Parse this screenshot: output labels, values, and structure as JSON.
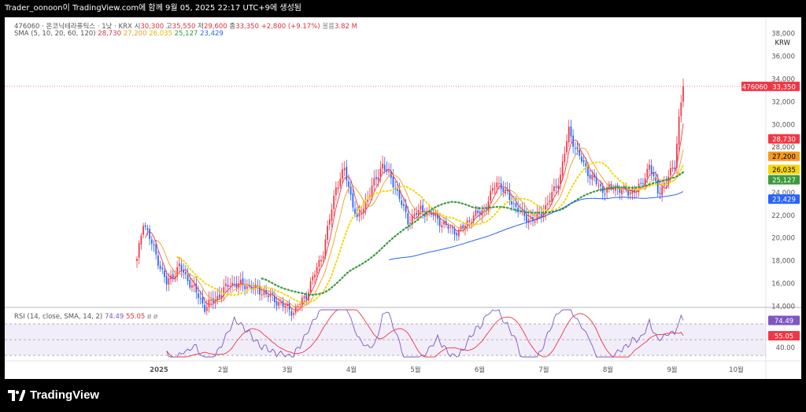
{
  "header": {
    "text": "Trader_oonoon이 TradingView.com에 함께 9월 05, 2025 22:17 UTC+9에 생성됨"
  },
  "legend_main": {
    "symbol": "476060 · 온코닉테라퓨틱스 · 1낮 · KRX",
    "open_label": "시",
    "open": "30,300",
    "high_label": "고",
    "high": "35,550",
    "low_label": "저",
    "low": "29,600",
    "close_label": "종",
    "close": "33,350",
    "change": "+2,800 (+9.17%)",
    "volume_label": "볼륨",
    "volume": "3.82 M"
  },
  "legend_sma": {
    "label": "SMA (5, 10, 20, 60, 120)",
    "v1": "28,730",
    "v2": "27,200",
    "v3": "26,035",
    "v4": "25,127",
    "v5": "23,429"
  },
  "legend_rsi": {
    "label": "RSI (14, close, SMA, 14, 2)",
    "v1": "74.49",
    "v2": "55.05",
    "v3": "ø ø"
  },
  "currency": "KRW",
  "brand": "TradingView",
  "colors": {
    "up": "#f23645",
    "down": "#2962ff",
    "sma5": "#f23645",
    "sma10": "#f59b1e",
    "sma20": "#f5d60a",
    "sma60": "#3b9a3c",
    "sma120": "#2962ff",
    "rsi": "#7e57c2",
    "rsi_ma": "#f23645"
  },
  "chart_data": {
    "type": "candlestick",
    "currency": "KRW",
    "price_ticks": [
      "38,000",
      "36,000",
      "34,000",
      "32,000",
      "30,000",
      "28,000",
      "26,000",
      "24,000",
      "22,000",
      "20,000",
      "18,000",
      "16,000",
      "14,000"
    ],
    "rsi_ticks": [
      "40.00"
    ],
    "x_ticks": [
      "2025",
      "2월",
      "3월",
      "4월",
      "5월",
      "6월",
      "7월",
      "8월",
      "9월",
      "10월"
    ],
    "last_price": {
      "symbol": "476060",
      "value": "33,350"
    },
    "sma_last": [
      "28,730",
      "27,200",
      "26,035",
      "25,127",
      "23,429"
    ],
    "rsi_last": [
      "74.49",
      "55.05"
    ],
    "approx_monthly_close": [
      {
        "month": "2025-01",
        "close": 15800
      },
      {
        "month": "2025-02",
        "close": 15500
      },
      {
        "month": "2025-03",
        "close": 14200
      },
      {
        "month": "2025-04",
        "close": 23500
      },
      {
        "month": "2025-05",
        "close": 21000
      },
      {
        "month": "2025-06",
        "close": 24500
      },
      {
        "month": "2025-07",
        "close": 23000
      },
      {
        "month": "2025-08",
        "close": 23500
      },
      {
        "month": "2025-09",
        "close": 33350
      }
    ]
  }
}
